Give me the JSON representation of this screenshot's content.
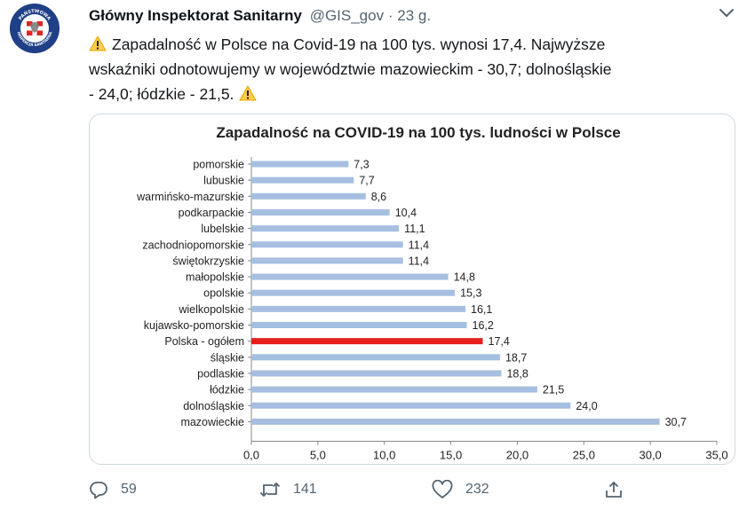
{
  "tweet": {
    "author_name": "Główny Inspektorat Sanitarny",
    "handle": "@GIS_gov",
    "separator": "·",
    "time": "23 g.",
    "avatar_text_top": "PAŃSTWOWA",
    "avatar_text_bottom": "INSPEKCJA SANITARNA",
    "text_line1": "Zapadalność w Polsce na Covid-19 na 100 tys. wynosi 17,4. Najwyższe",
    "text_line2": "wskaźniki odnotowujemy w województwie mazowieckim - 30,7; dolnośląskie",
    "text_line3": "- 24,0; łódzkie - 21,5.",
    "reply_count": "59",
    "retweet_count": "141",
    "like_count": "232"
  },
  "icons": [
    "more-icon",
    "warning-icon",
    "reply-icon",
    "retweet-icon",
    "like-icon",
    "share-icon"
  ],
  "colors": {
    "bar": "#a6bfe0",
    "highlight_bar": "#e61e1e",
    "handle": "#536471"
  },
  "chart_data": {
    "type": "bar",
    "orientation": "horizontal",
    "title": "Zapadalność na COVID-19 na 100 tys. ludności w Polsce",
    "xlabel": "",
    "ylabel": "",
    "xlim": [
      0,
      35
    ],
    "ticks": [
      "0,0",
      "5,0",
      "10,0",
      "15,0",
      "20,0",
      "25,0",
      "30,0",
      "35,0"
    ],
    "grid": false,
    "categories": [
      "pomorskie",
      "lubuskie",
      "warmińsko-mazurskie",
      "podkarpackie",
      "lubelskie",
      "zachodniopomorskie",
      "świętokrzyskie",
      "małopolskie",
      "opolskie",
      "wielkopolskie",
      "kujawsko-pomorskie",
      "Polska - ogółem",
      "śląskie",
      "podlaskie",
      "łódzkie",
      "dolnośląskie",
      "mazowieckie"
    ],
    "values": [
      7.3,
      7.7,
      8.6,
      10.4,
      11.1,
      11.4,
      11.4,
      14.8,
      15.3,
      16.1,
      16.2,
      17.4,
      18.7,
      18.8,
      21.5,
      24.0,
      30.7
    ],
    "value_labels": [
      "7,3",
      "7,7",
      "8,6",
      "10,4",
      "11,1",
      "11,4",
      "11,4",
      "14,8",
      "15,3",
      "16,1",
      "16,2",
      "17,4",
      "18,7",
      "18,8",
      "21,5",
      "24,0",
      "30,7"
    ],
    "highlight_category": "Polska - ogółem"
  }
}
